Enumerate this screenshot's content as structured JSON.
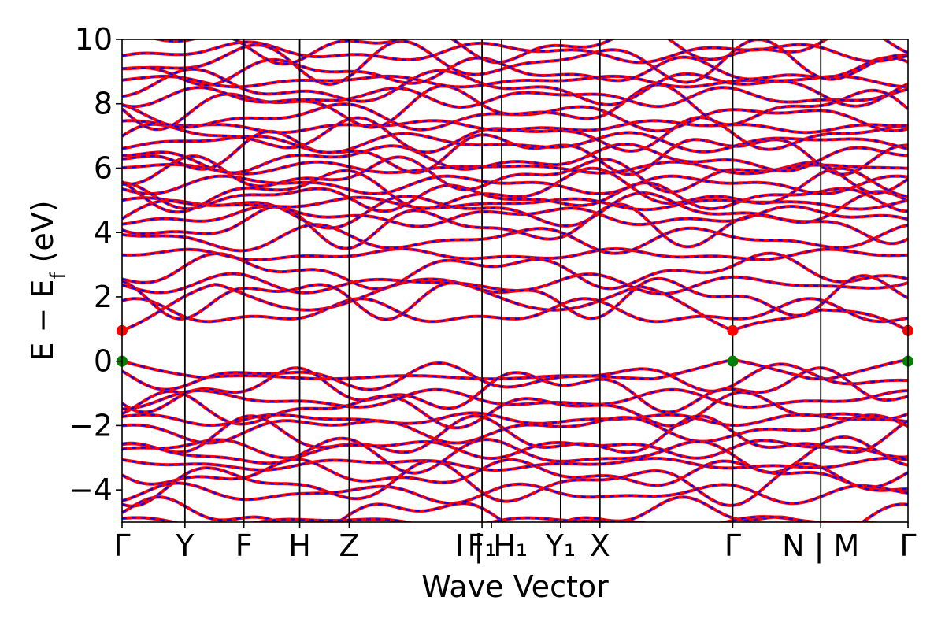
{
  "chart_data": {
    "type": "line",
    "title": "",
    "xlabel": "Wave Vector",
    "ylabel_main": "E − E",
    "ylabel_sub": "f",
    "ylabel_unit": " (eV)",
    "ylim": [
      -5,
      10
    ],
    "yticks": [
      {
        "value": 10,
        "label": "10"
      },
      {
        "value": 8,
        "label": "8"
      },
      {
        "value": 6,
        "label": "6"
      },
      {
        "value": 4,
        "label": "4"
      },
      {
        "value": 2,
        "label": "2"
      },
      {
        "value": 0,
        "label": "0"
      },
      {
        "value": -2,
        "label": "−2"
      },
      {
        "value": -4,
        "label": "−4"
      }
    ],
    "k_path_breaks": [
      0,
      0.08,
      0.155,
      0.226,
      0.289,
      0.458,
      0.483,
      0.558,
      0.608,
      0.777,
      0.889,
      1.0
    ],
    "xtick_labels": [
      {
        "at": 0,
        "label": "Γ"
      },
      {
        "at": 0.08,
        "label": "Y"
      },
      {
        "at": 0.155,
        "label": "F"
      },
      {
        "at": 0.226,
        "label": "H"
      },
      {
        "at": 0.289,
        "label": "Z"
      },
      {
        "at": 0.458,
        "label": "F₁"
      },
      {
        "at": 0.47,
        "label": "I | H₁"
      },
      {
        "at": 0.558,
        "label": "Y₁"
      },
      {
        "at": 0.608,
        "label": "X"
      },
      {
        "at": 0.777,
        "label": "Γ"
      },
      {
        "at": 0.889,
        "label": "N | M"
      },
      {
        "at": 1.0,
        "label": "Γ"
      }
    ],
    "series": [
      {
        "color": "#ff0000",
        "style": "solid"
      },
      {
        "color": "#0000ff",
        "style": "dashed"
      }
    ],
    "cbm": {
      "energy": 0.95,
      "color": "#ff0000",
      "k_positions": [
        0,
        0.777,
        1.0
      ]
    },
    "vbm": {
      "energy": 0.0,
      "color": "#008000",
      "k_positions": [
        0,
        0.777,
        1.0
      ]
    },
    "bands_conduction": [
      0.95,
      1.5,
      2.0,
      2.4,
      2.8,
      3.3,
      3.8,
      4.2,
      4.5,
      4.7,
      4.9,
      5.1,
      5.3,
      5.5,
      5.8,
      6.0,
      6.3,
      6.5,
      6.8,
      7.0,
      7.3,
      7.6,
      7.9,
      8.2,
      8.5,
      8.7,
      9.0,
      9.3,
      9.6,
      9.8
    ],
    "bands_valence": [
      0.0,
      -0.5,
      -0.9,
      -1.2,
      -1.5,
      -1.8,
      -2.1,
      -2.4,
      -2.7,
      -2.9,
      -3.2,
      -3.5,
      -3.8,
      -4.1,
      -4.8,
      -5.0
    ]
  }
}
